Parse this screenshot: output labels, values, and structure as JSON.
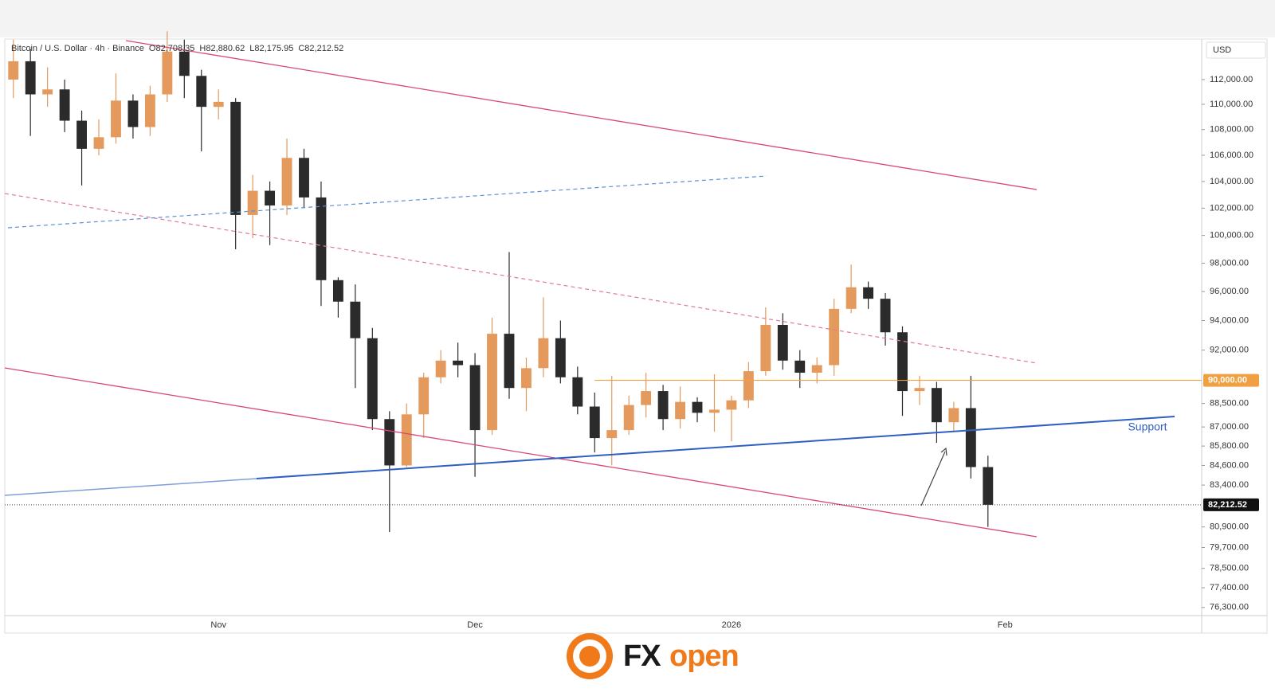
{
  "chart_data": {
    "type": "candlestick",
    "title": "Bitcoin / U.S. Dollar · 4h · Binance",
    "title_values": [
      "O82,708.35",
      "H82,880.62",
      "L82,175.95",
      "C82,212.52"
    ],
    "currency": "USD",
    "annotation": "Support",
    "logo_parts": [
      "FX",
      "open"
    ],
    "log_scale": true,
    "grid": false,
    "up_color": "#e39a5c",
    "down_color": "#2b2b2b",
    "ylim": [
      75850,
      115350
    ],
    "yticks": [
      {
        "value": 112000,
        "label": "112,000.00"
      },
      {
        "value": 110000,
        "label": "110,000.00"
      },
      {
        "value": 108000,
        "label": "108,000.00"
      },
      {
        "value": 106000,
        "label": "106,000.00"
      },
      {
        "value": 104000,
        "label": "104,000.00"
      },
      {
        "value": 102000,
        "label": "102,000.00"
      },
      {
        "value": 100000,
        "label": "100,000.00"
      },
      {
        "value": 98000,
        "label": "98,000.00"
      },
      {
        "value": 96000,
        "label": "96,000.00"
      },
      {
        "value": 94000,
        "label": "94,000.00"
      },
      {
        "value": 92000,
        "label": "92,000.00"
      },
      {
        "value": 88500,
        "label": "88,500.00"
      },
      {
        "value": 87000,
        "label": "87,000.00"
      },
      {
        "value": 85800,
        "label": "85,800.00"
      },
      {
        "value": 84600,
        "label": "84,600.00"
      },
      {
        "value": 83400,
        "label": "83,400.00"
      },
      {
        "value": 80900,
        "label": "80,900.00"
      },
      {
        "value": 79700,
        "label": "79,700.00"
      },
      {
        "value": 78500,
        "label": "78,500.00"
      },
      {
        "value": 77400,
        "label": "77,400.00"
      },
      {
        "value": 76300,
        "label": "76,300.00"
      }
    ],
    "level": {
      "value": 90000,
      "label": "90,000.00",
      "color": "#f0a040"
    },
    "last_price": {
      "value": 82212.52,
      "label": "82,212.52"
    },
    "categories": [
      null,
      null,
      null,
      null,
      null,
      null,
      null,
      null,
      null,
      null,
      null,
      null,
      "Nov",
      null,
      null,
      null,
      null,
      null,
      null,
      null,
      null,
      null,
      null,
      null,
      null,
      null,
      null,
      "Dec",
      null,
      null,
      null,
      null,
      null,
      null,
      null,
      null,
      null,
      null,
      null,
      null,
      null,
      null,
      "2026",
      null,
      null,
      null,
      null,
      null,
      null,
      null,
      null,
      null,
      null,
      null,
      null,
      null,
      null,
      null,
      "Feb",
      null,
      null,
      null,
      null,
      null,
      null,
      null,
      null,
      null,
      null,
      null
    ],
    "open": [
      112000,
      113500,
      110800,
      111200,
      108700,
      106500,
      107400,
      110300,
      108200,
      110800,
      114300,
      112300,
      109800,
      110200,
      101500,
      103300,
      102200,
      105800,
      102800,
      96800,
      95300,
      92800,
      87500,
      84600,
      87800,
      90200,
      91300,
      91000,
      86800,
      93100,
      89500,
      90800,
      92800,
      90200,
      88300,
      86300,
      86800,
      88400,
      89300,
      87500,
      88600,
      87900,
      88100,
      88700,
      90600,
      93700,
      91300,
      90500,
      91000,
      94800,
      96300,
      95500,
      93200,
      89300,
      89500,
      87300,
      88200,
      84500,
      null,
      null,
      null,
      null,
      null,
      null,
      null,
      null,
      null,
      null,
      null,
      null
    ],
    "high": [
      115300,
      114500,
      113000,
      112000,
      109500,
      108800,
      112500,
      110800,
      111500,
      116000,
      115300,
      112800,
      111200,
      110500,
      104500,
      104000,
      107300,
      106500,
      104000,
      97000,
      96500,
      93500,
      88000,
      88500,
      90500,
      92000,
      92500,
      91800,
      94200,
      98800,
      91500,
      95600,
      94000,
      90900,
      89200,
      90300,
      89000,
      90500,
      89700,
      89600,
      88900,
      90400,
      89000,
      91200,
      94900,
      94500,
      92000,
      91500,
      95500,
      97900,
      96700,
      95900,
      93600,
      90300,
      89900,
      88600,
      90300,
      85200,
      null,
      null,
      null,
      null,
      null,
      null,
      null,
      null,
      null,
      null,
      null,
      null
    ],
    "low": [
      110500,
      107500,
      109800,
      107800,
      103700,
      106000,
      106900,
      107300,
      107500,
      110200,
      110500,
      106300,
      108800,
      99000,
      99800,
      99300,
      101500,
      102000,
      95000,
      94200,
      89500,
      86800,
      80600,
      84500,
      86300,
      89800,
      90200,
      83900,
      86500,
      88800,
      88000,
      90200,
      89800,
      87800,
      85400,
      84600,
      86500,
      87600,
      86800,
      86900,
      87300,
      86700,
      86100,
      88200,
      90300,
      90700,
      89500,
      89800,
      90300,
      94500,
      94800,
      92300,
      87700,
      88400,
      86000,
      86700,
      83800,
      80900,
      null,
      null,
      null,
      null,
      null,
      null,
      null,
      null,
      null,
      null,
      null,
      null
    ],
    "close": [
      113500,
      110800,
      111200,
      108700,
      106500,
      107400,
      110300,
      108200,
      110800,
      114300,
      112300,
      109800,
      110200,
      101500,
      103300,
      102200,
      105800,
      102800,
      96800,
      95300,
      92800,
      87500,
      84600,
      87800,
      90200,
      91300,
      91000,
      86800,
      93100,
      89500,
      90800,
      92800,
      90200,
      88300,
      86300,
      86800,
      88400,
      89300,
      87500,
      88600,
      87900,
      88100,
      88700,
      90600,
      93700,
      91300,
      90500,
      91000,
      94800,
      96300,
      95500,
      93200,
      89300,
      89500,
      87300,
      88200,
      84500,
      82212.52,
      null,
      null,
      null,
      null,
      null,
      null,
      null,
      null,
      null,
      null,
      null,
      null
    ]
  }
}
